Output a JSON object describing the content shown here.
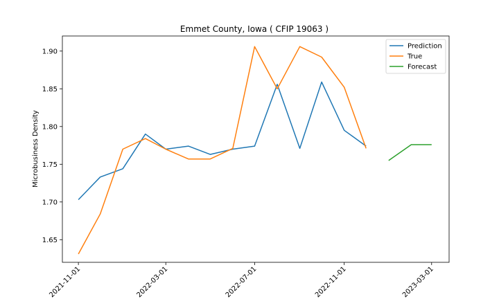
{
  "chart_data": {
    "type": "line",
    "title": "Emmet County, Iowa ( CFIP 19063 )",
    "xlabel": "",
    "ylabel": "Microbusiness Density",
    "x_ticks": [
      "2021-11-01",
      "2022-03-01",
      "2022-07-01",
      "2022-11-01",
      "2023-03-01"
    ],
    "y_ticks": [
      "1.65",
      "1.70",
      "1.75",
      "1.80",
      "1.85",
      "1.90"
    ],
    "ylim": [
      1.62,
      1.92
    ],
    "xlim": [
      "2021-10-10",
      "2023-03-25"
    ],
    "legend_position": "top-right",
    "grid": false,
    "series": [
      {
        "name": "Prediction",
        "color": "#1f77b4",
        "x": [
          "2021-11-01",
          "2021-12-01",
          "2022-01-01",
          "2022-02-01",
          "2022-03-01",
          "2022-04-01",
          "2022-05-01",
          "2022-06-01",
          "2022-07-01",
          "2022-08-01",
          "2022-09-01",
          "2022-10-01",
          "2022-11-01",
          "2022-12-01"
        ],
        "values": [
          1.703,
          1.733,
          1.744,
          1.79,
          1.77,
          1.774,
          1.763,
          1.77,
          1.774,
          1.856,
          1.771,
          1.859,
          1.795,
          1.774
        ]
      },
      {
        "name": "True",
        "color": "#ff7f0e",
        "x": [
          "2021-11-01",
          "2021-12-01",
          "2022-01-01",
          "2022-02-01",
          "2022-03-01",
          "2022-04-01",
          "2022-05-01",
          "2022-06-01",
          "2022-07-01",
          "2022-08-01",
          "2022-09-01",
          "2022-10-01",
          "2022-11-01",
          "2022-12-01"
        ],
        "values": [
          1.631,
          1.684,
          1.77,
          1.784,
          1.77,
          1.757,
          1.757,
          1.771,
          1.906,
          1.85,
          1.906,
          1.892,
          1.852,
          1.771
        ]
      },
      {
        "name": "Forecast",
        "color": "#2ca02c",
        "x": [
          "2023-01-01",
          "2023-02-01",
          "2023-03-01"
        ],
        "values": [
          1.755,
          1.776,
          1.776
        ]
      }
    ]
  }
}
